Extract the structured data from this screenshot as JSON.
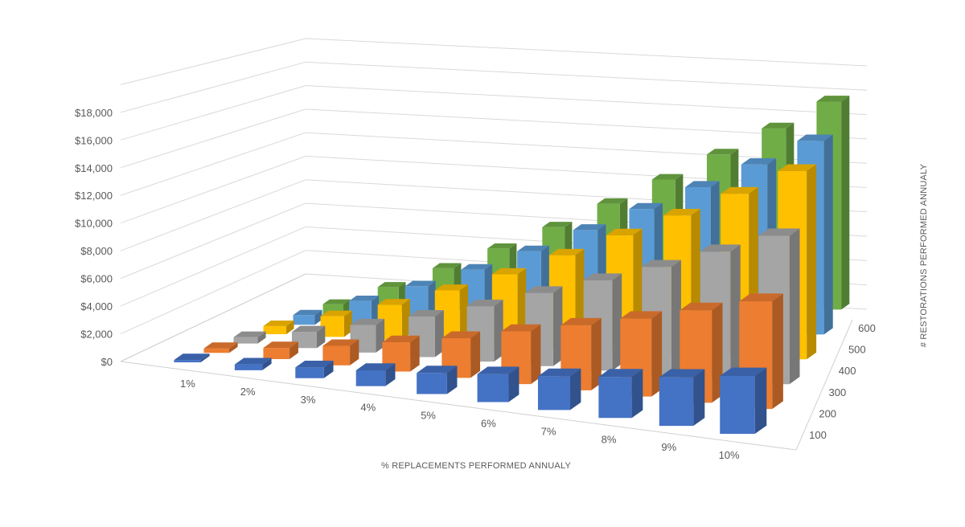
{
  "chart_data": {
    "type": "bar",
    "subtype": "3d-column",
    "title": "",
    "xlabel": "% REPLACEMENTS PERFORMED ANNUALY",
    "ylabel": "",
    "zlabel": "# RESTORATIONS PERFORMED ANNUALY",
    "categories": [
      "1%",
      "2%",
      "3%",
      "4%",
      "5%",
      "6%",
      "7%",
      "8%",
      "9%",
      "10%"
    ],
    "ylim": [
      0,
      18000
    ],
    "yticks": [
      "$0",
      "$2,000",
      "$4,000",
      "$6,000",
      "$8,000",
      "$10,000",
      "$12,000",
      "$14,000",
      "$16,000",
      "$18,000"
    ],
    "grid": true,
    "series": [
      {
        "name": "100",
        "color": "#4472C4",
        "values": [
          200,
          500,
          900,
          1300,
          1700,
          2200,
          2600,
          3100,
          3600,
          4200
        ]
      },
      {
        "name": "200",
        "color": "#ED7D31",
        "values": [
          400,
          1000,
          1700,
          2500,
          3300,
          4300,
          5200,
          6100,
          7100,
          8100
        ]
      },
      {
        "name": "300",
        "color": "#A5A5A5",
        "values": [
          600,
          1500,
          2500,
          3600,
          4800,
          6200,
          7500,
          8800,
          10200,
          11600
        ]
      },
      {
        "name": "400",
        "color": "#FFC000",
        "values": [
          800,
          2000,
          3300,
          4800,
          6400,
          8200,
          10000,
          11700,
          13500,
          15300
        ]
      },
      {
        "name": "500",
        "color": "#5B9BD5",
        "values": [
          1000,
          2500,
          4000,
          5600,
          7300,
          9200,
          11000,
          12800,
          14600,
          16400
        ]
      },
      {
        "name": "600",
        "color": "#70AD47",
        "values": [
          1200,
          2900,
          4700,
          6500,
          8400,
          10400,
          12400,
          14400,
          16400,
          18400
        ]
      }
    ]
  }
}
